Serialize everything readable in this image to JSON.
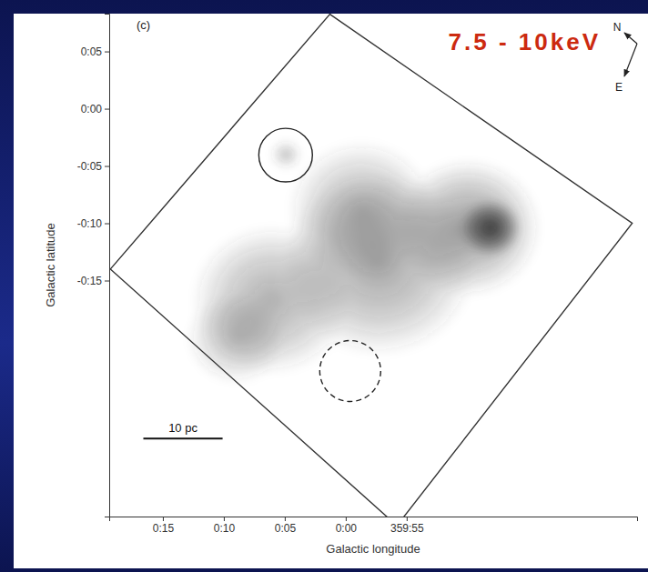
{
  "chart_data": {
    "type": "image",
    "title": "(c)",
    "subtitle": "7.5 - 10keV",
    "x_label": "Galactic longitude",
    "y_label": "Galactic latitude",
    "xlim": [
      19.4,
      -23.9
    ],
    "ylim": [
      -35.6,
      8.3
    ],
    "xticks": [
      {
        "value": 15,
        "label": "0:15"
      },
      {
        "value": 10,
        "label": "0:10"
      },
      {
        "value": 5,
        "label": "0:05"
      },
      {
        "value": 0,
        "label": "0:00"
      },
      {
        "value": -5,
        "label": "359:55"
      }
    ],
    "yticks": [
      {
        "value": 5,
        "label": "0:05"
      },
      {
        "value": 0,
        "label": "0:00"
      },
      {
        "value": -5,
        "label": "-0:05"
      },
      {
        "value": -10,
        "label": "-0:10"
      },
      {
        "value": -15,
        "label": "-0:15"
      }
    ],
    "grid": false,
    "color": "#3a3a3a",
    "emission": [
      {
        "l": -10.0,
        "b": -10.4,
        "size": 6.0,
        "intensity": 0.5
      },
      {
        "l": -2.7,
        "b": -13.6,
        "size": 8.0,
        "intensity": 0.45
      },
      {
        "l": 6.1,
        "b": -16.7,
        "size": 6.5,
        "intensity": 0.4
      },
      {
        "l": -1.25,
        "b": -8.8,
        "size": 6.0,
        "intensity": 0.35
      },
      {
        "l": 9.0,
        "b": -20.0,
        "size": 4.0,
        "intensity": 0.3
      },
      {
        "l": 4.9,
        "b": -4.0,
        "size": 1.2,
        "intensity": 0.3
      },
      {
        "l": -11.9,
        "b": -10.4,
        "size": 2.5,
        "intensity": 1.0
      }
    ],
    "regions": [
      {
        "type": "polygon",
        "line_style": "solid",
        "vertices": [
          [
            1.3,
            8.25
          ],
          [
            -23.5,
            -10.0
          ],
          [
            -4.2,
            -36.4
          ],
          [
            19.3,
            -14.0
          ]
        ]
      },
      {
        "type": "circle",
        "line_style": "solid",
        "l": 4.93,
        "b": -4.05,
        "radius": 2.2
      },
      {
        "type": "circle",
        "line_style": "dashed",
        "l": -0.37,
        "b": -22.9,
        "radius": 2.5
      }
    ],
    "scale_bar": {
      "label": "10 pc",
      "length": 6.5,
      "l": 16.6,
      "b": -28.8
    },
    "compass": [
      "N",
      "E"
    ]
  }
}
